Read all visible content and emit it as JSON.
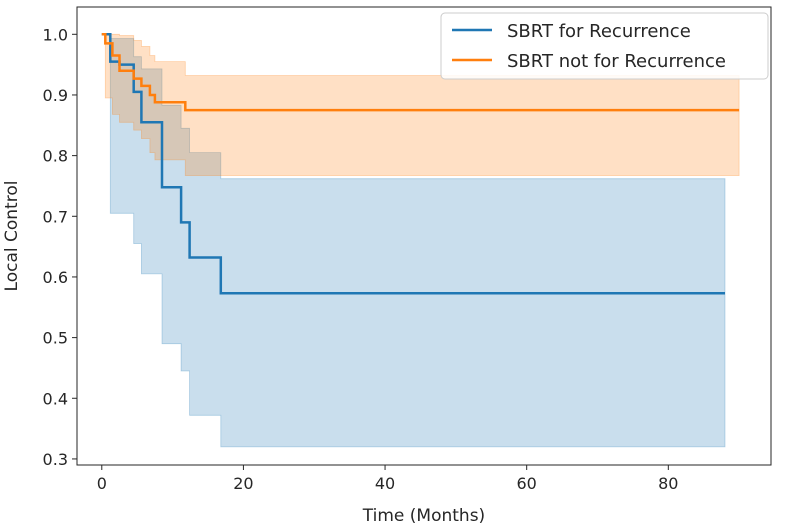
{
  "chart_data": {
    "type": "line",
    "subtype": "kaplan-meier step curves with confidence bands",
    "title": "",
    "xlabel": "Time (Months)",
    "ylabel": "Local Control",
    "xlim": [
      -3.5,
      94.5
    ],
    "ylim": [
      0.29,
      1.045
    ],
    "xticks": [
      0,
      20,
      40,
      60,
      80
    ],
    "yticks": [
      0.3,
      0.4,
      0.5,
      0.6,
      0.7,
      0.8,
      0.9,
      1.0
    ],
    "xtick_labels": [
      "0",
      "20",
      "40",
      "60",
      "80"
    ],
    "ytick_labels": [
      "0.3",
      "0.4",
      "0.5",
      "0.6",
      "0.7",
      "0.8",
      "0.9",
      "1.0"
    ],
    "grid": false,
    "legend_position": "top-right",
    "series": [
      {
        "name": "SBRT for Recurrence",
        "color": "#1f77b4",
        "band_color": "#1f77b4",
        "x": [
          0,
          1.2,
          2.5,
          4.5,
          5.6,
          6.8,
          8.5,
          11.2,
          12.4,
          16.8,
          88
        ],
        "y": [
          1.0,
          0.955,
          0.95,
          0.905,
          0.855,
          0.855,
          0.748,
          0.69,
          0.632,
          0.573,
          0.573
        ],
        "ci_lower": [
          1.0,
          0.705,
          0.705,
          0.655,
          0.605,
          0.605,
          0.49,
          0.445,
          0.372,
          0.32,
          0.32
        ],
        "ci_upper": [
          1.0,
          0.993,
          0.993,
          0.963,
          0.943,
          0.943,
          0.883,
          0.845,
          0.805,
          0.762,
          0.762
        ]
      },
      {
        "name": "SBRT not for Recurrence",
        "color": "#ff7f0e",
        "band_color": "#ff7f0e",
        "x": [
          0,
          0.5,
          1.5,
          2.5,
          4.5,
          5.6,
          6.8,
          7.5,
          11.8,
          90
        ],
        "y": [
          1.0,
          0.985,
          0.965,
          0.94,
          0.927,
          0.915,
          0.9,
          0.888,
          0.875,
          0.875
        ],
        "ci_lower": [
          1.0,
          0.895,
          0.868,
          0.855,
          0.842,
          0.828,
          0.805,
          0.793,
          0.767,
          0.767
        ],
        "ci_upper": [
          1.0,
          1.0,
          1.0,
          0.998,
          0.99,
          0.98,
          0.965,
          0.955,
          0.932,
          0.932
        ]
      }
    ]
  }
}
